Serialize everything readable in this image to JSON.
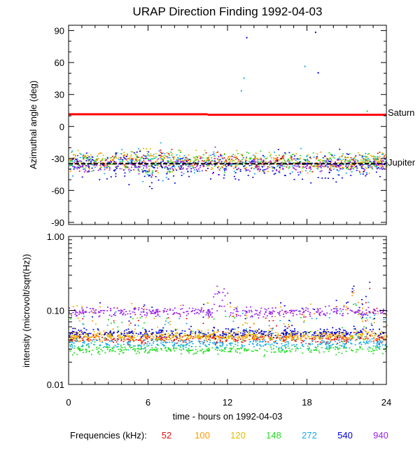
{
  "title": "URAP Direction Finding  1992-04-03",
  "chart_data": [
    {
      "type": "scatter",
      "panel": "azimuth",
      "ylabel": "Azimuthal angle (deg)",
      "ylim": [
        -92,
        95
      ],
      "yticks": [
        90,
        60,
        30,
        0,
        -30,
        -60,
        -90
      ],
      "xlim": [
        0,
        24
      ],
      "reference_lines": [
        {
          "name": "Saturn",
          "segments": [
            [
              0,
              10.5,
              11.5
            ],
            [
              10.5,
              24,
              11
            ]
          ],
          "color": "#ff0000"
        },
        {
          "name": "Jupiter",
          "segments": [
            [
              0,
              24,
              -35
            ]
          ],
          "color": "#000000"
        }
      ],
      "series": [
        {
          "name": "52",
          "center": -33,
          "spread": 8
        },
        {
          "name": "100",
          "center": -33,
          "spread": 8
        },
        {
          "name": "120",
          "center": -32,
          "spread": 8
        },
        {
          "name": "148",
          "center": -32,
          "spread": 9
        },
        {
          "name": "272",
          "center": -34,
          "spread": 10
        },
        {
          "name": "540",
          "center": -37,
          "spread": 13
        },
        {
          "name": "940",
          "center": -36,
          "spread": 6
        }
      ],
      "outliers": [
        {
          "t": 13.4,
          "v": 84,
          "series": "540"
        },
        {
          "t": 13.2,
          "v": 46,
          "series": "272"
        },
        {
          "t": 13.0,
          "v": 34,
          "series": "272"
        },
        {
          "t": 18.6,
          "v": 89,
          "series": "540"
        },
        {
          "t": 18.8,
          "v": 51,
          "series": "540"
        },
        {
          "t": 17.8,
          "v": 57,
          "series": "272"
        },
        {
          "t": 22.5,
          "v": 15,
          "series": "148"
        }
      ]
    },
    {
      "type": "scatter",
      "panel": "intensity",
      "ylabel": "intensity (microvolt/sqrt(Hz))",
      "yscale": "log",
      "ylim": [
        0.01,
        1.0
      ],
      "yticks": [
        1.0,
        0.1,
        0.01
      ],
      "ytick_labels": [
        "1.00",
        "0.10",
        "0.01"
      ],
      "xlim": [
        0,
        24
      ],
      "xticks": [
        0,
        6,
        12,
        18,
        24
      ],
      "xlabel": "time - hours on 1992-04-03",
      "series": [
        {
          "name": "52",
          "baseline": 0.042
        },
        {
          "name": "100",
          "baseline": 0.045
        },
        {
          "name": "120",
          "baseline": 0.047
        },
        {
          "name": "148",
          "baseline": 0.03
        },
        {
          "name": "272",
          "baseline": 0.036
        },
        {
          "name": "540",
          "baseline": 0.051
        },
        {
          "name": "940",
          "baseline": 0.097
        }
      ]
    }
  ],
  "legend": {
    "label": "Frequencies (kHz):",
    "items": [
      {
        "name": "52",
        "color": "#e01010"
      },
      {
        "name": "100",
        "color": "#ff9900"
      },
      {
        "name": "120",
        "color": "#ddbb00"
      },
      {
        "name": "148",
        "color": "#22dd22"
      },
      {
        "name": "272",
        "color": "#11aaee"
      },
      {
        "name": "540",
        "color": "#0000dd"
      },
      {
        "name": "940",
        "color": "#9922ee"
      }
    ]
  }
}
